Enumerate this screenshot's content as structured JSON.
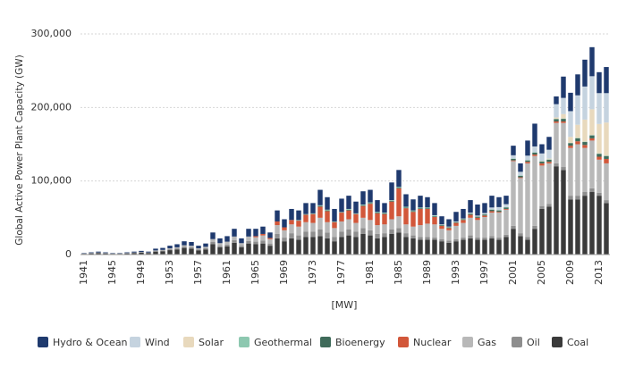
{
  "chart_data": {
    "type": "stacked_bar",
    "y_label": "Global Active Power Plant Capacity  (GW)",
    "x_label": "[MW]",
    "categories": [
      "1941",
      null,
      null,
      null,
      "1945",
      null,
      null,
      null,
      "1949",
      null,
      null,
      null,
      "1953",
      null,
      null,
      null,
      "1957",
      null,
      null,
      null,
      "1961",
      null,
      null,
      null,
      "1965",
      null,
      null,
      null,
      "1969",
      null,
      null,
      null,
      "1973",
      null,
      null,
      null,
      "1977",
      null,
      null,
      null,
      "1981",
      null,
      null,
      null,
      "1985",
      null,
      null,
      null,
      "1989",
      null,
      null,
      null,
      "1993",
      null,
      null,
      null,
      "1997",
      null,
      null,
      null,
      "2001",
      null,
      null,
      null,
      "2005",
      null,
      null,
      null,
      "2009",
      null,
      null,
      null,
      "2013",
      null
    ],
    "ylim": [
      0,
      300000
    ],
    "yticks": [
      0,
      {
        "value": 100000,
        "label": "100,000"
      },
      {
        "value": 200000,
        "label": "200,000"
      },
      {
        "value": 300000,
        "label": "300,000"
      }
    ],
    "grid": true,
    "series": [
      {
        "name": "Hydro & Ocean",
        "color": "#1f3a6e",
        "values": [
          600,
          900,
          1200,
          900,
          600,
          600,
          900,
          1200,
          1500,
          1200,
          2400,
          2700,
          3600,
          4200,
          5400,
          5000,
          3500,
          4500,
          9000,
          6500,
          7500,
          10500,
          6500,
          10500,
          10000,
          10000,
          7500,
          15000,
          11000,
          15000,
          13000,
          15000,
          14000,
          21000,
          17000,
          17000,
          18000,
          18000,
          16000,
          18000,
          17000,
          16000,
          13000,
          24000,
          23000,
          17000,
          15000,
          16000,
          14000,
          16500,
          11000,
          10000,
          13000,
          13000,
          17000,
          15000,
          13500,
          16000,
          13500,
          11500,
          13000,
          11500,
          20500,
          31000,
          12500,
          17500,
          10500,
          29000,
          25000,
          28500,
          36500,
          39500,
          28500,
          35500
        ]
      },
      {
        "name": "Wind",
        "color": "#c5d3df",
        "values": [
          0,
          0,
          0,
          0,
          0,
          0,
          0,
          0,
          0,
          0,
          0,
          0,
          0,
          0,
          0,
          0,
          0,
          0,
          0,
          0,
          0,
          0,
          0,
          0,
          0,
          0,
          0,
          0,
          0,
          0,
          0,
          0,
          0,
          0,
          0,
          0,
          0,
          0,
          0,
          0,
          0,
          0,
          0,
          0,
          0,
          0,
          0,
          0,
          0,
          500,
          500,
          500,
          500,
          500,
          1000,
          1000,
          1500,
          2500,
          4000,
          4000,
          4500,
          5000,
          6000,
          8000,
          10000,
          12000,
          18000,
          22000,
          35000,
          40000,
          45000,
          45000,
          42000,
          40000
        ]
      },
      {
        "name": "Solar",
        "color": "#e8d9bd",
        "values": [
          0,
          0,
          0,
          0,
          0,
          0,
          0,
          0,
          0,
          0,
          0,
          0,
          0,
          0,
          0,
          0,
          0,
          0,
          0,
          0,
          0,
          0,
          0,
          0,
          0,
          0,
          0,
          0,
          0,
          0,
          0,
          0,
          0,
          0,
          0,
          0,
          0,
          0,
          0,
          0,
          0,
          0,
          0,
          0,
          0,
          0,
          0,
          0,
          0,
          0,
          0,
          0,
          0,
          0,
          0,
          0,
          0,
          0,
          0,
          0,
          0,
          0,
          0,
          0,
          500,
          1000,
          2000,
          6000,
          8000,
          18000,
          30000,
          35000,
          40000,
          45000
        ]
      },
      {
        "name": "Geothermal",
        "color": "#8dc8b0",
        "values": [
          0,
          0,
          0,
          0,
          0,
          0,
          0,
          0,
          0,
          0,
          0,
          0,
          0,
          0,
          0,
          0,
          0,
          0,
          0,
          0,
          0,
          0,
          0,
          0,
          0,
          0,
          0,
          0,
          0,
          0,
          500,
          500,
          500,
          1000,
          1000,
          500,
          500,
          1000,
          500,
          1000,
          1000,
          1000,
          1000,
          1000,
          1000,
          1000,
          1000,
          1000,
          1000,
          1000,
          500,
          500,
          500,
          500,
          500,
          500,
          500,
          500,
          500,
          500,
          500,
          500,
          500,
          500,
          500,
          500,
          500,
          500,
          500,
          500,
          500,
          500,
          500,
          500
        ]
      },
      {
        "name": "Bioenergy",
        "color": "#3f6b5a",
        "values": [
          0,
          0,
          0,
          0,
          0,
          0,
          0,
          0,
          0,
          0,
          0,
          0,
          0,
          0,
          0,
          0,
          0,
          0,
          0,
          0,
          0,
          0,
          0,
          0,
          0,
          0,
          0,
          0,
          0,
          0,
          500,
          500,
          500,
          1000,
          1000,
          500,
          500,
          1000,
          500,
          1000,
          1000,
          1000,
          1000,
          1000,
          1000,
          1000,
          1000,
          1000,
          1000,
          1000,
          1000,
          1000,
          1000,
          1000,
          1500,
          1500,
          1500,
          2000,
          2000,
          2000,
          2000,
          2000,
          2000,
          2500,
          2500,
          3000,
          3000,
          3500,
          3500,
          4000,
          4000,
          4000,
          4000,
          4000
        ]
      },
      {
        "name": "Nuclear",
        "color": "#d2573a",
        "values": [
          0,
          0,
          0,
          0,
          0,
          0,
          0,
          0,
          0,
          0,
          0,
          0,
          0,
          0,
          0,
          0,
          0,
          0,
          0,
          0,
          0,
          0,
          0,
          0,
          1500,
          2000,
          1500,
          5000,
          4000,
          6000,
          8000,
          10000,
          12000,
          15000,
          15000,
          8000,
          12000,
          12000,
          12000,
          16000,
          22000,
          16000,
          14000,
          24000,
          38000,
          22000,
          20000,
          22000,
          20000,
          10000,
          4000,
          3000,
          4000,
          4000,
          4000,
          3000,
          2000,
          2000,
          1000,
          1000,
          1000,
          1000,
          2000,
          2000,
          3000,
          2000,
          2000,
          2000,
          3000,
          4000,
          4000,
          3000,
          4000,
          6000
        ]
      },
      {
        "name": "Gas",
        "color": "#b8b8b8",
        "values": [
          200,
          300,
          400,
          300,
          200,
          200,
          300,
          400,
          500,
          400,
          800,
          900,
          1200,
          1400,
          1800,
          2300,
          1800,
          2000,
          4000,
          3500,
          4000,
          5000,
          3500,
          6000,
          6000,
          7000,
          6000,
          12000,
          10000,
          12000,
          12000,
          13000,
          12000,
          16000,
          14000,
          12000,
          14000,
          14000,
          12000,
          14000,
          14000,
          12000,
          12000,
          14000,
          16000,
          12000,
          12000,
          16000,
          18000,
          18000,
          14000,
          14000,
          18000,
          20000,
          24000,
          24000,
          28000,
          32000,
          34000,
          34000,
          88000,
          75000,
          100000,
          95000,
          55000,
          55000,
          55000,
          60000,
          65000,
          70000,
          60000,
          65000,
          45000,
          50000
        ]
      },
      {
        "name": "Oil",
        "color": "#8e8e8e",
        "values": [
          200,
          300,
          400,
          300,
          200,
          200,
          300,
          400,
          500,
          400,
          800,
          900,
          1200,
          1400,
          1800,
          1700,
          1200,
          1500,
          3000,
          2000,
          2500,
          3500,
          2000,
          3500,
          3500,
          4000,
          3000,
          6000,
          5000,
          7000,
          6000,
          7000,
          7000,
          9000,
          8000,
          6000,
          7000,
          8000,
          7000,
          8000,
          7000,
          6000,
          5000,
          6000,
          6000,
          5000,
          4000,
          4000,
          4000,
          3000,
          3000,
          3000,
          3000,
          3000,
          4000,
          3000,
          3000,
          3000,
          3000,
          3000,
          4000,
          4000,
          4000,
          4000,
          4000,
          4000,
          4000,
          4000,
          5000,
          5000,
          5000,
          5000,
          4000,
          4000
        ]
      },
      {
        "name": "Coal",
        "color": "#3a3a3a",
        "values": [
          1000,
          1500,
          2000,
          1500,
          1000,
          1000,
          1500,
          2000,
          2500,
          2000,
          4000,
          4500,
          6000,
          7000,
          9000,
          8000,
          5500,
          7000,
          14000,
          10000,
          11000,
          16000,
          10000,
          15000,
          14000,
          15000,
          12000,
          22000,
          18000,
          22000,
          20000,
          24000,
          24000,
          25000,
          22000,
          18000,
          24000,
          26000,
          24000,
          28000,
          26000,
          22000,
          24000,
          28000,
          30000,
          24000,
          22000,
          20000,
          20000,
          20000,
          18000,
          16000,
          18000,
          20000,
          22000,
          20000,
          20000,
          22000,
          20000,
          24000,
          35000,
          25000,
          20000,
          35000,
          62000,
          65000,
          120000,
          115000,
          75000,
          75000,
          80000,
          85000,
          80000,
          70000
        ]
      }
    ]
  }
}
